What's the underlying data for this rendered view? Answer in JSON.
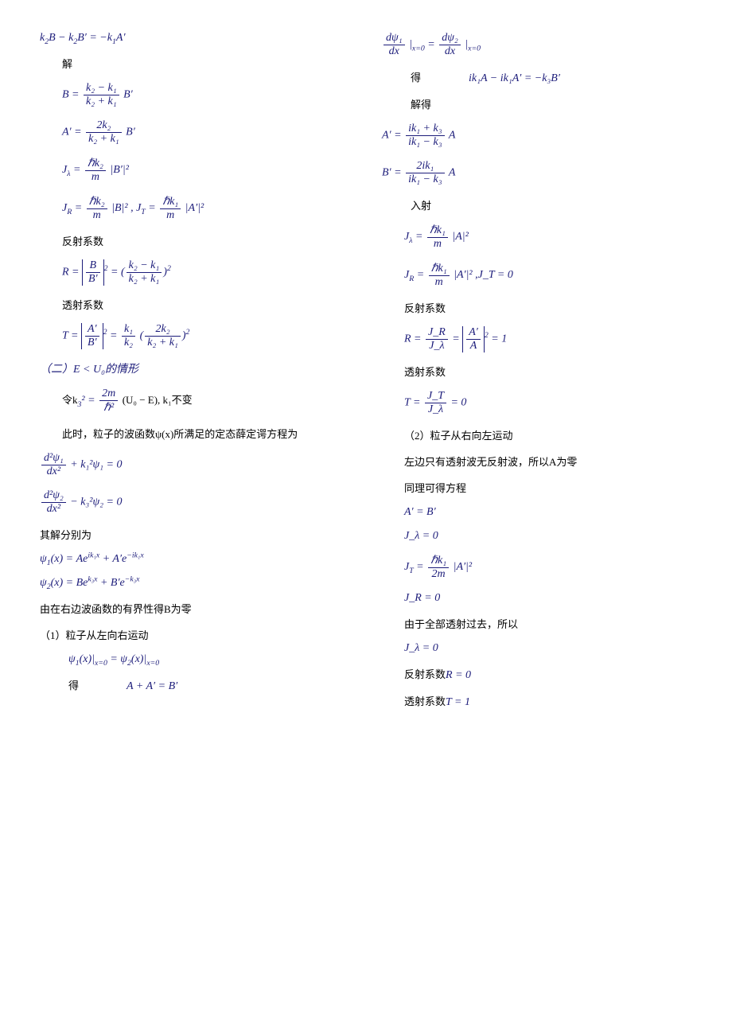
{
  "column1": {
    "eq1": {
      "lhs": "k",
      "sub1": "2",
      "mid": "B − k",
      "sub2": "2",
      "mid2": "B′ = −k",
      "sub3": "1",
      "tail": "A′"
    },
    "label_solve": "解",
    "eq_B": {
      "lhs": "B =",
      "num": "k₂ − k₁",
      "den": "k₂ + k₁",
      "tail": " B′"
    },
    "eq_Ap": {
      "lhs": "A′ =",
      "num": "2k₂",
      "den": "k₂ + k₁",
      "tail": " B′"
    },
    "eq_Jlambda": {
      "lhs": "J",
      "sub": "λ",
      "eq": " =",
      "num": "ℏk₂",
      "den": "m",
      "tail": "|B′|²"
    },
    "eq_JR_JT": {
      "jr_lhs": "J",
      "jr_sub": "R",
      "jr_eq": " =",
      "jr_num": "ℏk₂",
      "jr_den": "m",
      "jr_tail": "|B|²  ,",
      "jt_lhs": "J",
      "jt_sub": "T",
      "jt_eq": " =",
      "jt_num": "ℏk₁",
      "jt_den": "m",
      "jt_tail": " |A′|²"
    },
    "label_refl": "反射系数",
    "eq_R": {
      "lhs": "R = ",
      "abs_num": "B",
      "abs_den": "B′",
      "mid": " = ",
      "num": "k₂ − k₁",
      "den": "k₂ + k₁"
    },
    "label_trans": "透射系数",
    "eq_T": {
      "lhs": "T = ",
      "abs_num": "A′",
      "abs_den": "B′",
      "mid": " = ",
      "coef_num": "k₁",
      "coef_den": "k₂",
      "num": "2k₂",
      "den": "k₂ + k₁"
    },
    "case2": "（二）E < U₀的情形",
    "let_k3": {
      "text1": "令k",
      "sub1": "3",
      "text2": "² = ",
      "num": "2m",
      "den": "ℏ²",
      "text3": " (U₀ − E),  k₁不变"
    },
    "label_wave_eq": "此时，粒子的波函数ψ(x)所满足的定态薛定谔方程为",
    "eq_psi1": {
      "num": "d²ψ₁",
      "den": "dx²",
      "tail": " + k₁²ψ₁ = 0"
    },
    "eq_psi2": {
      "num": "d²ψ₂",
      "den": "dx²",
      "tail": " − k₃²ψ₂ = 0"
    },
    "label_solutions": "其解分别为",
    "eq_psi1x": "ψ₁(x) = Ae^{ik₁x} + A′e^{−ik₁x}",
    "eq_psi2x": "ψ₂(x) = Be^{k₃x} + B′e^{−k₃x}",
    "label_bounded": "由在右边波函数的有界性得B为零",
    "label_case1": "（1）粒子从左向右运动",
    "eq_bc1": "ψ₁(x)|_{x=0} = ψ₂(x)|_{x=0}",
    "label_get1": "得",
    "eq_sum1": "A + A′ = B′"
  },
  "column2": {
    "eq_deriv": {
      "num1": "dψ₁",
      "den": "dx",
      "mid": " |_{x=0} = ",
      "num2": "dψ₂",
      "tail": " |_{x=0}"
    },
    "label_get2": "得",
    "eq_ik": "ik₁A − ik₁A′ = −k₃B′",
    "label_solve_get": "解得",
    "eq_Ap2": {
      "lhs": "A′ = ",
      "num": "ik₁ + k₃",
      "den": "ik₁ − k₃",
      "tail": " A"
    },
    "eq_Bp2": {
      "lhs": "B′ = ",
      "num": "2ik₁",
      "den": "ik₁ − k₃",
      "tail": " A"
    },
    "label_incident": "入射",
    "eq_Jlam2": {
      "lhs": "J",
      "sub": "λ",
      "eq": " = ",
      "num": "ℏk₁",
      "den": "m",
      "tail": "|A|²"
    },
    "eq_JR2": {
      "lhs": "J",
      "sub": "R",
      "eq": " = ",
      "num": "ℏk₁",
      "den": "m",
      "tail": "|A′|²  ,J_T = 0"
    },
    "label_refl2": "反射系数",
    "eq_R2": {
      "lhs": "R = ",
      "num": "J_R",
      "den": "J_λ",
      "mid": " = ",
      "abs_num": "A′",
      "abs_den": "A",
      "tail": " = 1"
    },
    "label_trans2": "透射系数",
    "eq_T2": {
      "lhs": "T = ",
      "num": "J_T",
      "den": "J_λ",
      "tail": " = 0"
    },
    "label_case2": "（2）粒子从右向左运动",
    "label_left_only": "左边只有透射波无反射波，所以A为零",
    "label_same": "同理可得方程",
    "eq_ApBp": "A′ = B′",
    "eq_Jlam_zero": "J_λ = 0",
    "eq_JT3": {
      "lhs": "J",
      "sub": "T",
      "eq": " = ",
      "num": "ℏk₁",
      "den": "2m",
      "tail": "|A′|²"
    },
    "eq_JR_zero": "J_R = 0",
    "label_all_trans": "由于全部透射过去，所以",
    "eq_Jlam_zero2": "J_λ = 0",
    "label_R_zero": "反射系数R = 0",
    "label_T_one": "透射系数T = 1"
  }
}
